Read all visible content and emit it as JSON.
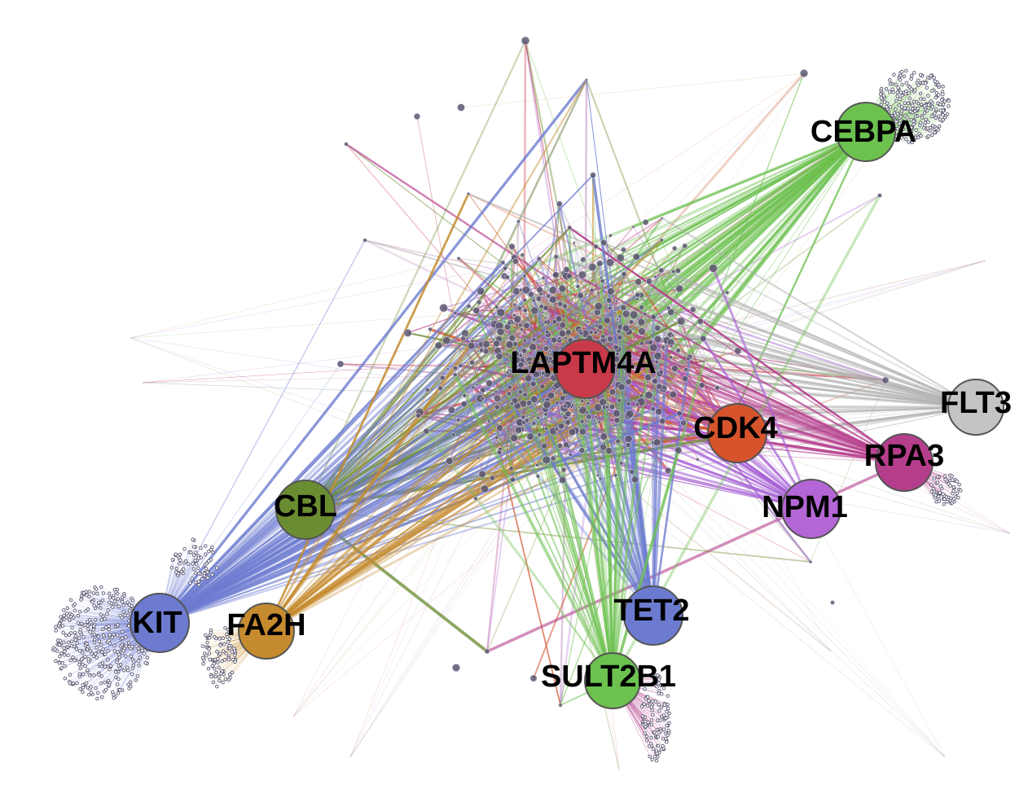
{
  "hubs": [
    {
      "id": "cebpa",
      "label": "CEBPA",
      "color": "#6cc14f"
    },
    {
      "id": "laptm4a",
      "label": "LAPTM4A",
      "color": "#c83a4a"
    },
    {
      "id": "cdk4",
      "label": "CDK4",
      "color": "#d6532c"
    },
    {
      "id": "flt3",
      "label": "FLT3",
      "color": "#c4c4c4"
    },
    {
      "id": "rpa3",
      "label": "RPA3",
      "color": "#b53e8c"
    },
    {
      "id": "npm1",
      "label": "NPM1",
      "color": "#b466d6"
    },
    {
      "id": "cbl",
      "label": "CBL",
      "color": "#6b8d31"
    },
    {
      "id": "kit",
      "label": "KIT",
      "color": "#6c7bd0"
    },
    {
      "id": "fa2h",
      "label": "FA2H",
      "color": "#c58b2e"
    },
    {
      "id": "tet2",
      "label": "TET2",
      "color": "#6c7bd0"
    },
    {
      "id": "sult2b1",
      "label": "SULT2B1",
      "color": "#6cc14f"
    }
  ],
  "small_node_color": "#5a5670",
  "edge_palette": [
    "#6cc14f",
    "#a860d6",
    "#c58b2e",
    "#6c7bd0",
    "#d6532c",
    "#c83a4a",
    "#6b8d31",
    "#b0b0b0",
    "#c8a0c8",
    "#b53e8c"
  ]
}
